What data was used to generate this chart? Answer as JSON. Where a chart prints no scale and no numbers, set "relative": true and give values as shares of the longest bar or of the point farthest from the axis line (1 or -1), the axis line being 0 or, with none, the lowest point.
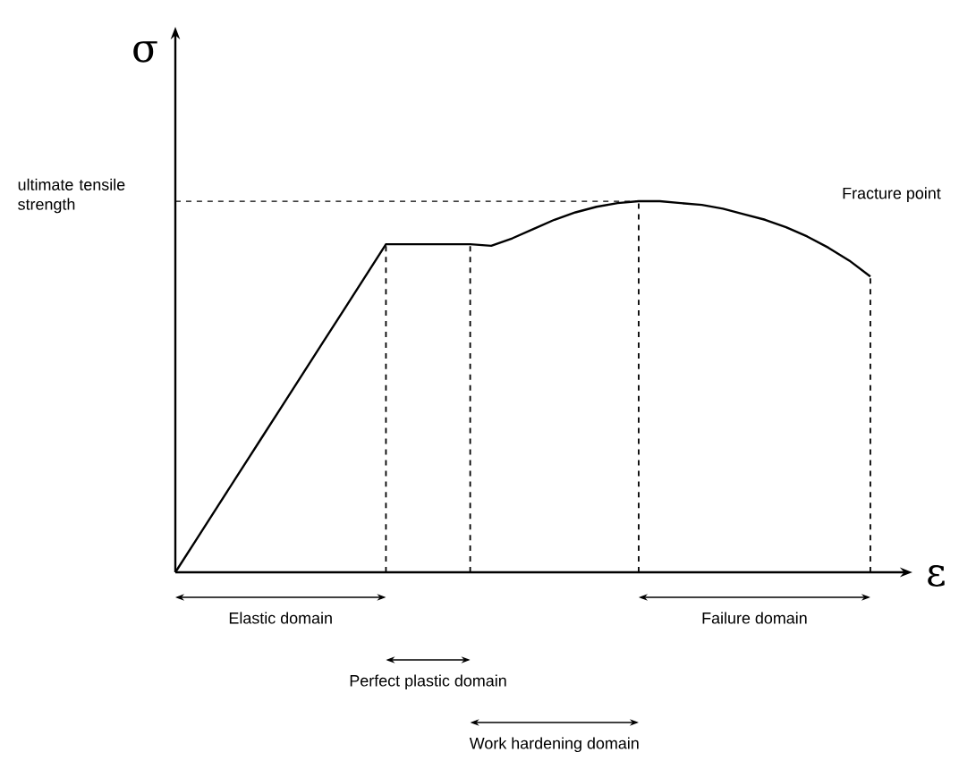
{
  "chart_data": {
    "type": "line",
    "relative": true,
    "grid": "x",
    "marker": "none",
    "line_style": "solid",
    "xlabel": "ε",
    "ylabel": "σ",
    "categories": [
      null,
      null,
      null,
      null,
      null,
      null,
      null,
      null,
      null,
      null,
      null,
      null,
      null,
      null,
      null,
      null,
      null,
      null,
      null,
      null,
      null,
      null,
      null,
      null,
      null,
      null,
      null,
      null,
      null,
      null,
      null,
      null,
      null,
      null
    ],
    "series": [
      {
        "color": "#000000",
        "values": [
          0,
          0.0884,
          0.1768,
          0.2652,
          0.3536,
          0.442,
          0.5304,
          0.6188,
          0.7072,
          0.7956,
          0.884,
          0.884,
          0.884,
          0.884,
          0.884,
          0.88,
          0.9,
          0.925,
          0.95,
          0.97,
          0.985,
          0.995,
          1,
          1,
          0.995,
          0.99,
          0.98,
          0.965,
          0.95,
          0.93,
          0.905,
          0.875,
          0.84,
          0.797
        ]
      }
    ],
    "ref_lines": [
      {
        "axis": "y",
        "value": 1,
        "label": "ultimate tensile strength",
        "line_style": "dashed"
      }
    ],
    "annotations": [
      "Elastic domain",
      "Perfect plastic domain",
      "Work hardening domain",
      "Failure domain",
      "Fracture point"
    ]
  }
}
